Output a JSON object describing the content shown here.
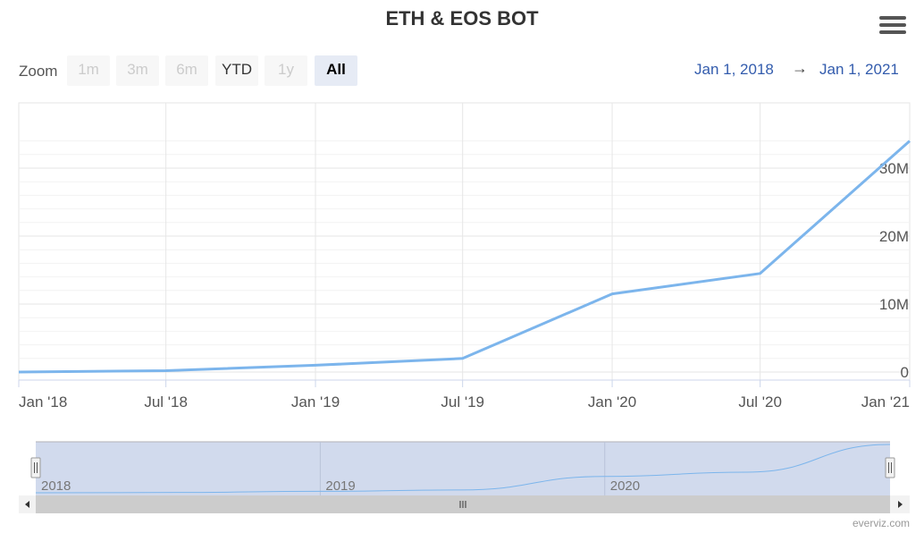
{
  "title": "ETH & EOS BOT",
  "menu_icon": "hamburger-menu-icon",
  "range_selector": {
    "zoom_label": "Zoom",
    "buttons": [
      {
        "label": "1m",
        "state": "disabled"
      },
      {
        "label": "3m",
        "state": "disabled"
      },
      {
        "label": "6m",
        "state": "disabled"
      },
      {
        "label": "YTD",
        "state": "enabled"
      },
      {
        "label": "1y",
        "state": "disabled"
      },
      {
        "label": "All",
        "state": "selected"
      }
    ],
    "from": "Jan 1, 2018",
    "arrow": "→",
    "to": "Jan 1, 2021"
  },
  "chart_data": {
    "type": "line",
    "title": "ETH & EOS BOT",
    "x_tick_labels": [
      "Jan '18",
      "Jul '18",
      "Jan '19",
      "Jul '19",
      "Jan '20",
      "Jul '20",
      "Jan '21"
    ],
    "y_tick_labels": [
      "0",
      "10M",
      "20M",
      "30M"
    ],
    "x": [
      "2018-01-01",
      "2018-07-01",
      "2019-01-01",
      "2019-07-01",
      "2020-01-01",
      "2020-07-01",
      "2021-01-01"
    ],
    "series": [
      {
        "values": [
          0,
          200000,
          1000000,
          2000000,
          11500000,
          14500000,
          34000000
        ],
        "color": "#7cb5ec"
      }
    ],
    "ylim": [
      0,
      35000000
    ],
    "grid": true,
    "navigator": {
      "labels": [
        "2018",
        "2019",
        "2020"
      ]
    }
  },
  "scrollbar": {
    "left_arrow_icon": "left-arrow-icon",
    "right_arrow_icon": "right-arrow-icon",
    "grip_icon": "scroll-grip-icon"
  },
  "credit": "everviz.com"
}
